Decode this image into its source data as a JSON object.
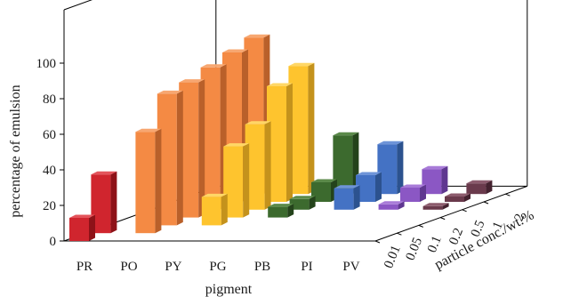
{
  "chart_data": {
    "type": "bar",
    "subtype": "3d-bar",
    "title": "",
    "xlabel": "pigment",
    "ylabel": "percentage of emulsion",
    "zlabel": "particle conc./wt.%",
    "ylim": [
      0,
      100
    ],
    "yticks": [
      0,
      20,
      40,
      60,
      80,
      100
    ],
    "categories": [
      "PR",
      "PO",
      "PY",
      "PG",
      "PB",
      "PI",
      "PV"
    ],
    "concentrations": [
      "0.01",
      "0.05",
      "0.1",
      "0.2",
      "0.5",
      "1",
      "2"
    ],
    "grid": false,
    "legend": "none",
    "series": [
      {
        "concentration": "0.01",
        "values": [
          13,
          0,
          0,
          0,
          0,
          0,
          0
        ]
      },
      {
        "concentration": "0.05",
        "values": [
          33,
          57,
          0,
          0,
          0,
          0,
          0
        ]
      },
      {
        "concentration": "0.1",
        "values": [
          0,
          74,
          16,
          0,
          0,
          0,
          0
        ]
      },
      {
        "concentration": "0.2",
        "values": [
          0,
          76,
          40,
          6,
          0,
          0,
          0
        ]
      },
      {
        "concentration": "0.5",
        "values": [
          0,
          80,
          48,
          6,
          12,
          3,
          2
        ]
      },
      {
        "concentration": "1",
        "values": [
          0,
          84,
          65,
          11,
          15,
          8,
          3
        ]
      },
      {
        "concentration": "2",
        "values": [
          0,
          88,
          72,
          33,
          28,
          14,
          6
        ]
      }
    ],
    "series_colors": {
      "PR": {
        "front": "#d0252e",
        "side": "#8e1218",
        "top": "#e3545b"
      },
      "PO": {
        "front": "#f48a44",
        "side": "#b9602a",
        "top": "#f7a771"
      },
      "PY": {
        "front": "#fec42e",
        "side": "#c4921c",
        "top": "#ffd766"
      },
      "PG": {
        "front": "#3c6a2e",
        "side": "#24431b",
        "top": "#5b8a4a"
      },
      "PB": {
        "front": "#4472c4",
        "side": "#2c528f",
        "top": "#6e94d8"
      },
      "PI": {
        "front": "#8b57c4",
        "side": "#5f3790",
        "top": "#a87bd8"
      },
      "PV": {
        "front": "#6a3a4c",
        "side": "#44222f",
        "top": "#8c5b6d"
      }
    }
  }
}
